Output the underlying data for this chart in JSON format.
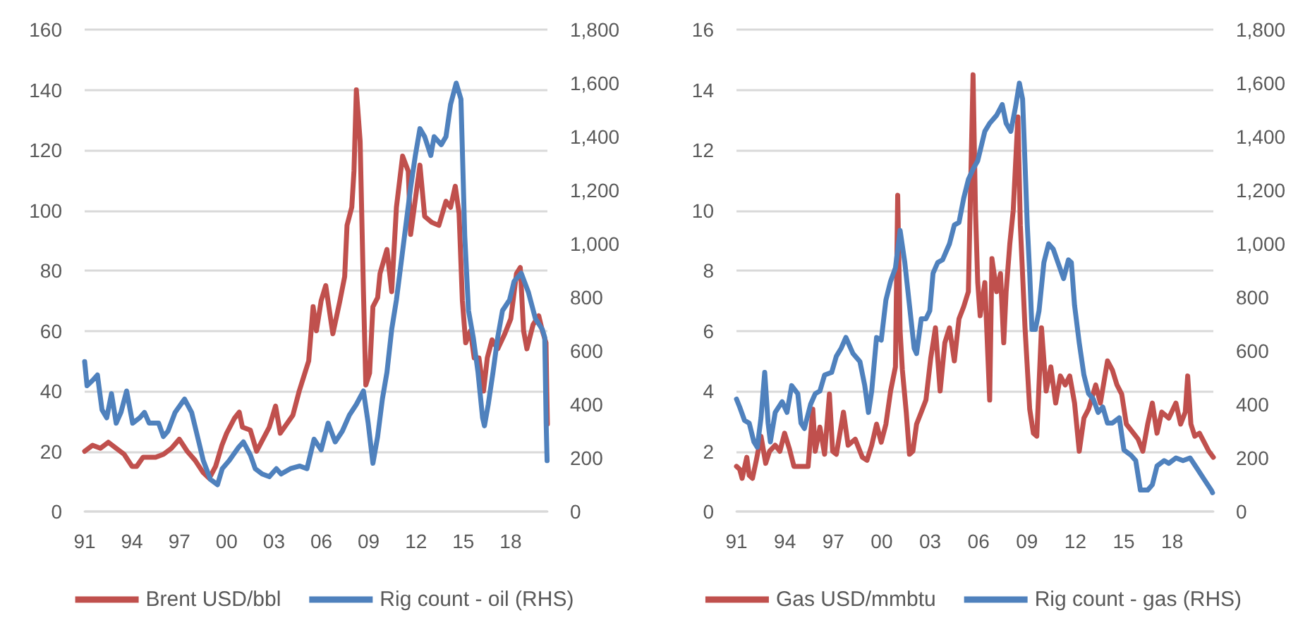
{
  "chart_data": [
    {
      "type": "line",
      "grid": "y",
      "legend": "bottom",
      "marker": "none",
      "line_style": "solid",
      "xlim": [
        1991,
        2020.33
      ],
      "xticks": [
        {
          "value": 1991,
          "label": "91"
        },
        {
          "value": 1994,
          "label": "94"
        },
        {
          "value": 1997,
          "label": "97"
        },
        {
          "value": 2000,
          "label": "00"
        },
        {
          "value": 2003,
          "label": "03"
        },
        {
          "value": 2006,
          "label": "06"
        },
        {
          "value": 2009,
          "label": "09"
        },
        {
          "value": 2012,
          "label": "12"
        },
        {
          "value": 2015,
          "label": "15"
        },
        {
          "value": 2018,
          "label": "18"
        }
      ],
      "ylim": [
        0,
        160
      ],
      "yticks": [
        0,
        20,
        40,
        60,
        80,
        100,
        120,
        140,
        160
      ],
      "y2lim": [
        0,
        1800
      ],
      "y2ticks": [
        0,
        200,
        400,
        600,
        800,
        {
          "value": 1000,
          "label": "1,000"
        },
        {
          "value": 1200,
          "label": "1,200"
        },
        {
          "value": 1400,
          "label": "1,400"
        },
        {
          "value": 1600,
          "label": "1,600"
        },
        {
          "value": 1800,
          "label": "1,800"
        }
      ],
      "series": [
        {
          "name": "Brent USD/bbl",
          "color": "#c0504d",
          "x": [
            1991.0,
            1991.5,
            1992.0,
            1992.5,
            1993.0,
            1993.5,
            1994.0,
            1994.3,
            1994.7,
            1995.0,
            1995.5,
            1996.0,
            1996.5,
            1997.0,
            1997.5,
            1998.0,
            1998.5,
            1998.9,
            1999.3,
            1999.7,
            2000.0,
            2000.5,
            2000.8,
            2001.0,
            2001.5,
            2001.9,
            2002.3,
            2002.7,
            2003.1,
            2003.4,
            2003.8,
            2004.2,
            2004.6,
            2004.9,
            2005.2,
            2005.48,
            2005.69,
            2005.99,
            2006.28,
            2006.73,
            2007.18,
            2007.48,
            2007.63,
            2007.93,
            2008.07,
            2008.22,
            2008.46,
            2008.67,
            2008.82,
            2009.06,
            2009.27,
            2009.57,
            2009.72,
            2010.16,
            2010.46,
            2010.76,
            2011.15,
            2011.51,
            2011.66,
            2012.25,
            2012.55,
            2013.0,
            2013.45,
            2013.9,
            2014.19,
            2014.49,
            2014.73,
            2014.94,
            2015.15,
            2015.45,
            2015.69,
            2015.99,
            2016.28,
            2016.52,
            2016.82,
            2017.18,
            2017.63,
            2018.01,
            2018.37,
            2018.61,
            2018.82,
            2019.03,
            2019.42,
            2019.78,
            2020.01,
            2020.24,
            2020.29,
            2020.33
          ],
          "values": [
            20,
            22,
            21,
            23,
            21,
            19,
            15,
            15,
            18,
            18,
            18,
            19,
            21,
            24,
            20,
            17,
            13,
            11,
            15,
            22,
            26,
            31,
            33,
            28,
            27,
            20,
            24,
            28,
            35,
            26,
            29,
            32,
            40,
            45,
            50,
            68,
            60,
            70,
            75,
            59,
            70,
            78,
            95,
            101,
            113,
            140,
            123,
            73,
            42,
            46,
            68,
            71,
            79,
            87,
            73,
            101,
            118,
            113,
            92,
            115,
            98,
            96,
            95,
            103,
            101,
            108,
            99,
            70,
            56,
            60,
            51,
            51,
            40,
            51,
            57,
            54,
            59,
            64,
            79,
            81,
            60,
            54,
            62,
            65,
            60,
            56,
            40,
            29
          ]
        },
        {
          "name": "Rig count - oil (RHS)",
          "color": "#4f81bd",
          "axis": "y2",
          "x": [
            1991.0,
            1991.15,
            1991.51,
            1991.81,
            1992.1,
            1992.4,
            1992.7,
            1993.0,
            1993.3,
            1993.66,
            1994.04,
            1994.49,
            1994.79,
            1995.09,
            1995.69,
            1995.99,
            1996.28,
            1996.73,
            1997.33,
            1997.78,
            1998.07,
            1998.52,
            1998.97,
            1999.42,
            1999.72,
            2000.16,
            2000.76,
            2001.06,
            2001.51,
            2001.81,
            2002.25,
            2002.7,
            2003.15,
            2003.45,
            2004.04,
            2004.64,
            2005.09,
            2005.54,
            2005.99,
            2006.43,
            2006.88,
            2007.33,
            2007.78,
            2008.22,
            2008.67,
            2008.97,
            2009.27,
            2009.57,
            2009.87,
            2010.16,
            2010.46,
            2010.76,
            2011.06,
            2011.36,
            2011.66,
            2011.96,
            2012.25,
            2012.55,
            2012.94,
            2013.15,
            2013.6,
            2013.9,
            2014.19,
            2014.55,
            2014.85,
            2015.09,
            2015.33,
            2015.63,
            2015.93,
            2016.22,
            2016.34,
            2016.58,
            2016.88,
            2017.18,
            2017.48,
            2017.93,
            2018.22,
            2018.67,
            2019.12,
            2019.57,
            2020.01,
            2020.16,
            2020.25,
            2020.31
          ],
          "values": [
            560,
            470,
            490,
            510,
            380,
            350,
            440,
            330,
            370,
            450,
            330,
            350,
            370,
            330,
            330,
            280,
            300,
            370,
            420,
            370,
            300,
            190,
            120,
            100,
            160,
            190,
            240,
            260,
            210,
            160,
            140,
            130,
            160,
            140,
            160,
            170,
            160,
            270,
            230,
            330,
            260,
            300,
            360,
            400,
            450,
            330,
            180,
            280,
            420,
            520,
            680,
            790,
            930,
            1070,
            1210,
            1330,
            1430,
            1400,
            1330,
            1400,
            1370,
            1400,
            1520,
            1600,
            1540,
            1030,
            750,
            650,
            520,
            350,
            320,
            400,
            520,
            650,
            750,
            790,
            860,
            890,
            820,
            720,
            680,
            650,
            330,
            190
          ]
        }
      ]
    },
    {
      "type": "line",
      "grid": "y",
      "legend": "bottom",
      "marker": "none",
      "line_style": "solid",
      "xlim": [
        1991,
        2020.55
      ],
      "xticks": [
        {
          "value": 1991,
          "label": "91"
        },
        {
          "value": 1994,
          "label": "94"
        },
        {
          "value": 1997,
          "label": "97"
        },
        {
          "value": 2000,
          "label": "00"
        },
        {
          "value": 2003,
          "label": "03"
        },
        {
          "value": 2006,
          "label": "06"
        },
        {
          "value": 2009,
          "label": "09"
        },
        {
          "value": 2012,
          "label": "12"
        },
        {
          "value": 2015,
          "label": "15"
        },
        {
          "value": 2018,
          "label": "18"
        }
      ],
      "ylim": [
        0,
        16
      ],
      "yticks": [
        0,
        2,
        4,
        6,
        8,
        10,
        12,
        14,
        16
      ],
      "y2lim": [
        0,
        1800
      ],
      "y2ticks": [
        0,
        200,
        400,
        600,
        800,
        {
          "value": 1000,
          "label": "1,000"
        },
        {
          "value": 1200,
          "label": "1,200"
        },
        {
          "value": 1400,
          "label": "1,400"
        },
        {
          "value": 1600,
          "label": "1,600"
        },
        {
          "value": 1800,
          "label": "1,800"
        }
      ],
      "series": [
        {
          "name": "Gas USD/mmbtu",
          "color": "#c0504d",
          "x": [
            1991.0,
            1991.2,
            1991.35,
            1991.64,
            1991.79,
            1991.99,
            1992.23,
            1992.52,
            1992.81,
            1993.05,
            1993.4,
            1993.69,
            1993.98,
            1994.27,
            1994.56,
            1995.0,
            1995.44,
            1995.73,
            1995.88,
            1996.17,
            1996.46,
            1996.76,
            1996.96,
            1997.19,
            1997.63,
            1997.92,
            1998.36,
            1998.8,
            1999.09,
            1999.38,
            1999.68,
            1999.97,
            2000.26,
            2000.55,
            2000.85,
            2000.99,
            2001.14,
            2001.28,
            2001.52,
            2001.72,
            2001.93,
            2002.16,
            2002.45,
            2002.74,
            2003.04,
            2003.33,
            2003.62,
            2003.91,
            2004.2,
            2004.5,
            2004.79,
            2005.08,
            2005.37,
            2005.66,
            2005.81,
            2005.95,
            2006.1,
            2006.39,
            2006.69,
            2006.83,
            2007.12,
            2007.36,
            2007.56,
            2007.71,
            2007.94,
            2008.15,
            2008.44,
            2008.59,
            2008.88,
            2009.17,
            2009.4,
            2009.61,
            2009.9,
            2010.19,
            2010.48,
            2010.78,
            2011.07,
            2011.37,
            2011.65,
            2011.95,
            2012.24,
            2012.53,
            2012.82,
            2013.26,
            2013.55,
            2013.99,
            2014.29,
            2014.58,
            2014.87,
            2015.16,
            2015.6,
            2015.89,
            2016.18,
            2016.48,
            2016.77,
            2017.06,
            2017.35,
            2017.79,
            2018.23,
            2018.52,
            2018.81,
            2018.96,
            2019.16,
            2019.4,
            2019.69,
            2019.98,
            2020.27,
            2020.55
          ],
          "values": [
            1.5,
            1.4,
            1.1,
            1.8,
            1.2,
            1.1,
            1.7,
            2.5,
            1.6,
            2.0,
            2.2,
            2.0,
            2.6,
            2.1,
            1.5,
            1.5,
            1.5,
            3.4,
            2.0,
            2.8,
            1.9,
            3.9,
            2.0,
            1.9,
            3.3,
            2.2,
            2.4,
            1.8,
            1.7,
            2.2,
            2.9,
            2.3,
            2.9,
            4.0,
            4.8,
            10.5,
            6.0,
            4.7,
            3.3,
            1.9,
            2.0,
            2.9,
            3.3,
            3.7,
            5.1,
            6.1,
            4.0,
            5.6,
            6.1,
            5.0,
            6.4,
            6.8,
            7.3,
            14.5,
            10.0,
            7.6,
            6.5,
            7.6,
            3.7,
            8.4,
            7.3,
            7.9,
            5.6,
            7.3,
            8.9,
            10.0,
            13.1,
            9.5,
            6.1,
            3.4,
            2.6,
            2.5,
            6.1,
            4.0,
            4.8,
            3.6,
            4.5,
            4.2,
            4.5,
            3.6,
            2.0,
            3.1,
            3.4,
            4.2,
            3.6,
            5.0,
            4.7,
            4.2,
            3.9,
            2.9,
            2.6,
            2.4,
            2.0,
            2.9,
            3.6,
            2.6,
            3.3,
            3.1,
            3.6,
            2.9,
            3.3,
            4.5,
            2.9,
            2.5,
            2.6,
            2.3,
            2.0,
            1.8
          ]
        },
        {
          "name": "Rig count - gas (RHS)",
          "color": "#4f81bd",
          "axis": "y2",
          "x": [
            1991.0,
            1991.2,
            1991.5,
            1991.79,
            1992.08,
            1992.29,
            1992.52,
            1992.75,
            1992.96,
            1993.1,
            1993.4,
            1993.83,
            1994.13,
            1994.42,
            1994.8,
            1995.0,
            1995.21,
            1995.59,
            1995.88,
            1996.17,
            1996.46,
            1996.9,
            1997.19,
            1997.49,
            1997.78,
            1998.22,
            1998.65,
            1998.95,
            1999.18,
            1999.38,
            1999.68,
            1999.97,
            2000.26,
            2000.55,
            2000.85,
            2001.14,
            2001.43,
            2001.72,
            2002.01,
            2002.16,
            2002.45,
            2002.74,
            2002.98,
            2003.18,
            2003.47,
            2003.77,
            2004.2,
            2004.5,
            2004.79,
            2005.08,
            2005.37,
            2005.67,
            2005.95,
            2006.39,
            2006.69,
            2007.12,
            2007.47,
            2007.71,
            2008.0,
            2008.29,
            2008.53,
            2008.73,
            2008.88,
            2009.02,
            2009.17,
            2009.31,
            2009.52,
            2009.75,
            2010.05,
            2010.34,
            2010.63,
            2010.92,
            2011.27,
            2011.57,
            2011.75,
            2011.95,
            2012.24,
            2012.53,
            2012.82,
            2013.11,
            2013.41,
            2013.7,
            2013.99,
            2014.29,
            2014.72,
            2015.01,
            2015.45,
            2015.74,
            2016.03,
            2016.48,
            2016.77,
            2017.06,
            2017.5,
            2017.79,
            2018.23,
            2018.67,
            2019.11,
            2019.55,
            2019.98,
            2020.42,
            2020.5
          ],
          "values": [
            420,
            390,
            340,
            330,
            260,
            240,
            350,
            520,
            330,
            260,
            370,
            410,
            370,
            470,
            440,
            330,
            310,
            400,
            440,
            450,
            510,
            520,
            580,
            610,
            650,
            590,
            560,
            470,
            370,
            450,
            650,
            640,
            790,
            860,
            910,
            1050,
            930,
            770,
            610,
            590,
            720,
            720,
            750,
            890,
            930,
            940,
            1000,
            1070,
            1080,
            1170,
            1240,
            1280,
            1310,
            1420,
            1450,
            1480,
            1520,
            1450,
            1420,
            1510,
            1600,
            1540,
            1300,
            1070,
            890,
            680,
            680,
            750,
            930,
            1000,
            980,
            930,
            870,
            940,
            930,
            770,
            630,
            510,
            440,
            420,
            370,
            390,
            330,
            330,
            350,
            230,
            210,
            190,
            80,
            80,
            100,
            170,
            190,
            180,
            200,
            190,
            200,
            160,
            120,
            80,
            70
          ]
        }
      ]
    }
  ]
}
